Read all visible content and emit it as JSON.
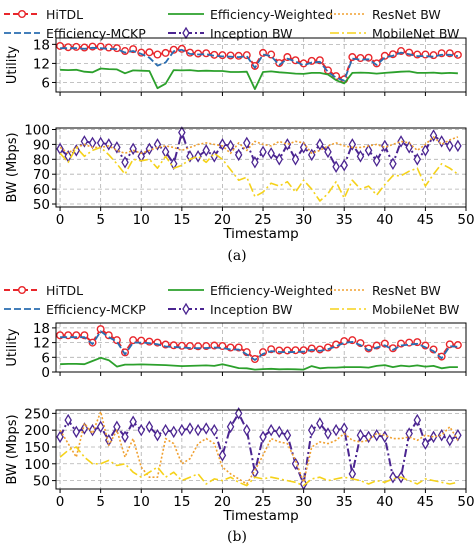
{
  "legend": [
    {
      "key": "hitdl",
      "label": "HiTDL",
      "color": "#e8262b",
      "dash": "6,3",
      "marker": "circle",
      "width": 2
    },
    {
      "key": "effw",
      "label": "Efficiency-Weighted",
      "color": "#2ca02c",
      "dash": "",
      "marker": "none",
      "width": 1.8
    },
    {
      "key": "resnet",
      "label": "ResNet BW",
      "color": "#f0a030",
      "dash": "2,2",
      "marker": "none",
      "width": 1.6
    },
    {
      "key": "mckp",
      "label": "Efficiency-MCKP",
      "color": "#2a6db0",
      "dash": "7,3",
      "marker": "none",
      "width": 1.8
    },
    {
      "key": "inception",
      "label": "Inception BW",
      "color": "#4b2591",
      "dash": "8,3,2,3",
      "marker": "diamond",
      "width": 2
    },
    {
      "key": "mobilenet",
      "label": "MobileNet BW",
      "color": "#f5d21a",
      "dash": "9,3,2,3",
      "marker": "none",
      "width": 1.6
    }
  ],
  "chart_data": [
    {
      "panel": "a",
      "caption": "(a)",
      "xlabel": "Timestamp",
      "xticks": [
        0,
        5,
        10,
        15,
        20,
        25,
        30,
        35,
        40,
        45,
        50
      ],
      "xlim": [
        -0.5,
        50
      ],
      "utility": {
        "type": "line",
        "ylabel": "Utility",
        "ylim": [
          3,
          20
        ],
        "yticks": [
          6,
          12,
          18
        ],
        "x": [
          0,
          1,
          2,
          3,
          4,
          5,
          6,
          7,
          8,
          9,
          10,
          11,
          12,
          13,
          14,
          15,
          16,
          17,
          18,
          19,
          20,
          21,
          22,
          23,
          24,
          25,
          26,
          27,
          28,
          29,
          30,
          31,
          32,
          33,
          34,
          35,
          36,
          37,
          38,
          39,
          40,
          41,
          42,
          43,
          44,
          45,
          46,
          47,
          48,
          49
        ],
        "series": [
          {
            "key": "hitdl",
            "values": [
              17.5,
              17.1,
              17.2,
              17.0,
              17.3,
              17.3,
              17.0,
              16.8,
              15.9,
              16.5,
              15.4,
              15.5,
              14.8,
              15.3,
              16.3,
              16.6,
              15.4,
              15.1,
              15.2,
              14.7,
              14.6,
              14.5,
              14.4,
              14.6,
              11.2,
              15.3,
              14.8,
              12.1,
              14.0,
              13.0,
              12.0,
              12.8,
              13.0,
              9.8,
              8.0,
              7.0,
              14.0,
              13.7,
              13.8,
              12.0,
              14.4,
              14.9,
              15.9,
              15.4,
              14.8,
              14.8,
              14.6,
              15.2,
              15.2,
              14.7
            ]
          },
          {
            "key": "mckp",
            "values": [
              16.8,
              16.8,
              16.8,
              16.6,
              16.9,
              16.8,
              16.6,
              16.5,
              15.4,
              15.9,
              15.0,
              13.8,
              11.3,
              12.3,
              15.8,
              16.3,
              15.0,
              14.8,
              14.9,
              14.4,
              14.2,
              14.1,
              14.0,
              14.3,
              10.6,
              14.8,
              14.3,
              11.5,
              13.5,
              12.6,
              11.4,
              12.3,
              12.5,
              9.3,
              7.5,
              6.6,
              13.5,
              13.2,
              13.3,
              11.5,
              13.9,
              14.4,
              15.4,
              14.9,
              14.3,
              14.3,
              14.1,
              14.7,
              14.7,
              14.3
            ]
          },
          {
            "key": "effw",
            "values": [
              10.0,
              9.9,
              10.0,
              9.4,
              9.2,
              10.4,
              10.2,
              10.1,
              8.9,
              9.8,
              9.7,
              9.6,
              4.2,
              5.6,
              9.9,
              9.8,
              9.9,
              9.6,
              9.7,
              9.6,
              9.6,
              9.3,
              9.3,
              9.4,
              3.9,
              9.3,
              9.5,
              9.2,
              9.0,
              8.8,
              8.7,
              9.0,
              9.0,
              8.5,
              6.7,
              5.7,
              9.0,
              9.1,
              9.0,
              8.8,
              9.0,
              9.2,
              9.4,
              9.5,
              9.0,
              9.0,
              9.1,
              8.9,
              9.0,
              8.9
            ]
          }
        ]
      },
      "bandwidth": {
        "type": "line",
        "ylabel": "BW (Mbps)",
        "ylim": [
          48,
          101
        ],
        "yticks": [
          50,
          60,
          70,
          80,
          90,
          100
        ],
        "x": [
          0,
          1,
          2,
          3,
          4,
          5,
          6,
          7,
          8,
          9,
          10,
          11,
          12,
          13,
          14,
          15,
          16,
          17,
          18,
          19,
          20,
          21,
          22,
          23,
          24,
          25,
          26,
          27,
          28,
          29,
          30,
          31,
          32,
          33,
          34,
          35,
          36,
          37,
          38,
          39,
          40,
          41,
          42,
          43,
          44,
          45,
          46,
          47,
          48,
          49
        ],
        "series": [
          {
            "key": "inception",
            "values": [
              87,
              82,
              86,
              92,
              91,
              91,
              90,
              88,
              78,
              87,
              82,
              87,
              90,
              85,
              77,
              98,
              82,
              82,
              86,
              82,
              90,
              89,
              83,
              91,
              78,
              85,
              84,
              80,
              90,
              80,
              88,
              83,
              90,
              85,
              75,
              76,
              90,
              82,
              86,
              79,
              89,
              77,
              92,
              88,
              80,
              86,
              96,
              92,
              89,
              89
            ]
          },
          {
            "key": "resnet",
            "values": [
              88,
              84,
              88,
              90,
              88,
              88,
              89,
              86,
              84,
              86,
              84,
              86,
              88,
              89,
              88,
              86,
              88,
              90,
              91,
              90,
              89,
              84,
              91,
              86,
              92,
              90,
              89,
              92,
              90,
              92,
              91,
              84,
              86,
              89,
              91,
              89,
              88,
              88,
              89,
              90,
              88,
              90,
              92,
              91,
              86,
              90,
              95,
              90,
              93,
              95
            ]
          },
          {
            "key": "mobilenet",
            "values": [
              84,
              78,
              88,
              82,
              86,
              88,
              83,
              77,
              70,
              80,
              79,
              80,
              74,
              82,
              74,
              76,
              80,
              82,
              78,
              84,
              80,
              73,
              66,
              68,
              55,
              58,
              64,
              62,
              65,
              58,
              66,
              60,
              52,
              57,
              65,
              54,
              66,
              60,
              62,
              56,
              63,
              69,
              69,
              72,
              74,
              62,
              70,
              77,
              74,
              70
            ]
          }
        ]
      }
    },
    {
      "panel": "b",
      "caption": "(b)",
      "xlabel": "Timestamp",
      "xticks": [
        0,
        5,
        10,
        15,
        20,
        25,
        30,
        35,
        40,
        45,
        50
      ],
      "xlim": [
        -0.5,
        50
      ],
      "utility": {
        "type": "line",
        "ylabel": "Utility",
        "ylim": [
          0,
          20
        ],
        "yticks": [
          0,
          6,
          12,
          18
        ],
        "x": [
          0,
          1,
          2,
          3,
          4,
          5,
          6,
          7,
          8,
          9,
          10,
          11,
          12,
          13,
          14,
          15,
          16,
          17,
          18,
          19,
          20,
          21,
          22,
          23,
          24,
          25,
          26,
          27,
          28,
          29,
          30,
          31,
          32,
          33,
          34,
          35,
          36,
          37,
          38,
          39,
          40,
          41,
          42,
          43,
          44,
          45,
          46,
          47,
          48,
          49
        ],
        "series": [
          {
            "key": "hitdl",
            "values": [
              15.0,
              15.0,
              15.0,
              15.0,
              12.0,
              17.5,
              15.0,
              13.0,
              8.0,
              13.0,
              12.8,
              12.4,
              12.0,
              11.2,
              10.9,
              10.7,
              10.6,
              10.5,
              10.6,
              10.8,
              10.6,
              10.0,
              10.0,
              8.1,
              5.3,
              8.1,
              9.3,
              8.8,
              8.8,
              8.9,
              8.9,
              9.6,
              9.2,
              10.0,
              11.2,
              12.6,
              13.0,
              11.8,
              9.6,
              10.8,
              11.6,
              9.7,
              11.6,
              12.0,
              12.2,
              10.8,
              9.2,
              6.3,
              11.3,
              11.0
            ]
          },
          {
            "key": "mckp",
            "values": [
              14.2,
              14.2,
              14.2,
              14.2,
              11.4,
              16.6,
              14.2,
              12.4,
              7.2,
              12.0,
              12.0,
              11.8,
              11.3,
              10.4,
              10.2,
              10.0,
              9.8,
              9.7,
              9.8,
              10.0,
              9.8,
              9.2,
              9.2,
              7.2,
              4.9,
              7.4,
              8.5,
              8.2,
              8.1,
              8.2,
              8.3,
              9.0,
              8.6,
              9.3,
              10.5,
              11.9,
              12.3,
              11.0,
              8.8,
              10.0,
              10.9,
              9.0,
              10.8,
              11.2,
              11.5,
              10.1,
              8.5,
              5.6,
              10.5,
              10.3
            ]
          },
          {
            "key": "effw",
            "values": [
              3.2,
              3.3,
              3.3,
              3.2,
              4.5,
              5.8,
              4.8,
              2.2,
              3.0,
              3.0,
              3.1,
              3.0,
              2.9,
              2.8,
              2.6,
              2.4,
              2.5,
              2.6,
              2.7,
              2.5,
              3.2,
              2.4,
              1.6,
              1.5,
              1.0,
              1.2,
              1.3,
              1.1,
              1.2,
              1.1,
              1.0,
              2.4,
              1.5,
              1.8,
              1.8,
              2.0,
              2.0,
              2.0,
              1.8,
              2.5,
              2.8,
              2.0,
              2.6,
              2.3,
              2.7,
              2.2,
              2.5,
              1.5,
              2.0,
              2.0
            ]
          }
        ]
      },
      "bandwidth": {
        "type": "line",
        "ylabel": "BW (Mbps)",
        "ylim": [
          25,
          260
        ],
        "yticks": [
          50,
          100,
          150,
          200,
          250
        ],
        "x": [
          0,
          1,
          2,
          3,
          4,
          5,
          6,
          7,
          8,
          9,
          10,
          11,
          12,
          13,
          14,
          15,
          16,
          17,
          18,
          19,
          20,
          21,
          22,
          23,
          24,
          25,
          26,
          27,
          28,
          29,
          30,
          31,
          32,
          33,
          34,
          35,
          36,
          37,
          38,
          39,
          40,
          41,
          42,
          43,
          44,
          45,
          46,
          47,
          48,
          49
        ],
        "series": [
          {
            "key": "inception",
            "values": [
              180,
              230,
              195,
              205,
              200,
              210,
              170,
              210,
              180,
              225,
              200,
              210,
              185,
              200,
              195,
              200,
              205,
              200,
              205,
              200,
              125,
              210,
              250,
              200,
              75,
              180,
              200,
              195,
              185,
              100,
              40,
              200,
              220,
              190,
              200,
              205,
              70,
              185,
              180,
              185,
              180,
              60,
              60,
              190,
              230,
              160,
              180,
              185,
              170,
              185
            ]
          },
          {
            "key": "resnet",
            "values": [
              200,
              160,
              120,
              220,
              190,
              255,
              155,
              200,
              120,
              175,
              90,
              60,
              60,
              175,
              160,
              100,
              115,
              160,
              175,
              160,
              90,
              70,
              55,
              40,
              80,
              125,
              175,
              165,
              160,
              110,
              45,
              150,
              165,
              160,
              170,
              190,
              170,
              165,
              170,
              190,
              185,
              175,
              175,
              180,
              170,
              185,
              180,
              185,
              210,
              170
            ]
          },
          {
            "key": "mobilenet",
            "values": [
              120,
              140,
              150,
              120,
              100,
              100,
              110,
              95,
              100,
              75,
              60,
              75,
              90,
              60,
              75,
              50,
              60,
              70,
              40,
              55,
              50,
              60,
              45,
              35,
              60,
              55,
              60,
              55,
              50,
              45,
              35,
              55,
              60,
              50,
              55,
              60,
              55,
              50,
              40,
              50,
              45,
              55,
              60,
              50,
              40,
              55,
              50,
              45,
              40,
              45
            ]
          }
        ]
      }
    }
  ]
}
